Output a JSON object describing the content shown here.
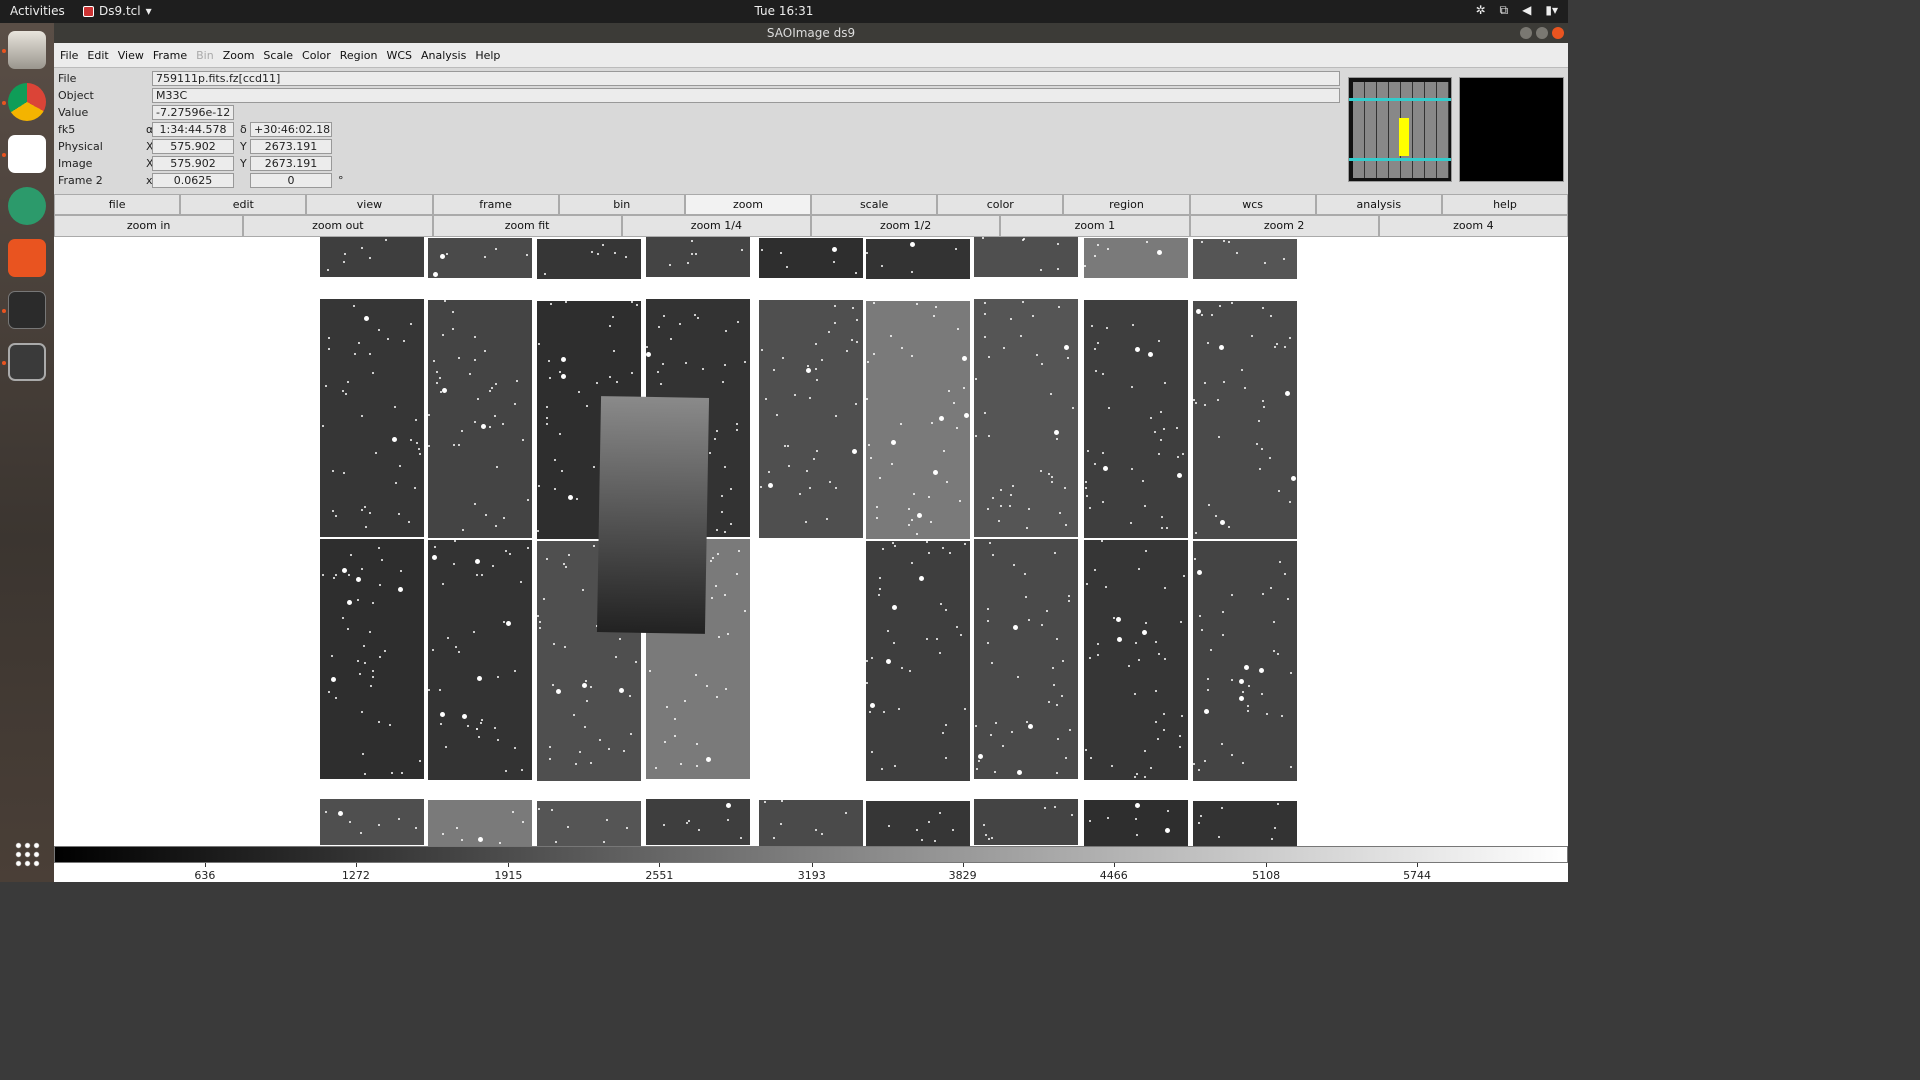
{
  "topbar": {
    "activities": "Activities",
    "app_name": "Ds9.tcl",
    "clock": "Tue 16:31"
  },
  "dock": {
    "apps": [
      "files",
      "chrome",
      "slack",
      "atom",
      "app-store",
      "terminal",
      "ds9"
    ]
  },
  "window": {
    "title": "SAOImage ds9"
  },
  "menubar": {
    "items": [
      "File",
      "Edit",
      "View",
      "Frame",
      "Bin",
      "Zoom",
      "Scale",
      "Color",
      "Region",
      "WCS",
      "Analysis",
      "Help"
    ],
    "disabled": [
      "Bin"
    ]
  },
  "info": {
    "file_label": "File",
    "file_value": "759111p.fits.fz[ccd11]",
    "object_label": "Object",
    "object_value": "M33C",
    "value_label": "Value",
    "value_value": "-7.27596e-12",
    "wcs_label": "fk5",
    "alpha_symbol": "α",
    "alpha_value": "1:34:44.578",
    "delta_symbol": "δ",
    "delta_value": "+30:46:02.183",
    "physical_label": "Physical",
    "physical_x_label": "X",
    "physical_x": "575.902",
    "physical_y_label": "Y",
    "physical_y": "2673.191",
    "image_label": "Image",
    "image_x_label": "X",
    "image_x": "575.902",
    "image_y_label": "Y",
    "image_y": "2673.191",
    "frame_label": "Frame 2",
    "frame_x_label": "x",
    "frame_zoom": "0.0625",
    "frame_angle": "0",
    "degree": "°"
  },
  "buttonbar": [
    "file",
    "edit",
    "view",
    "frame",
    "bin",
    "zoom",
    "scale",
    "color",
    "region",
    "wcs",
    "analysis",
    "help"
  ],
  "buttonbar_active": "zoom",
  "zoombar": [
    "zoom in",
    "zoom out",
    "zoom fit",
    "zoom 1/4",
    "zoom 1/2",
    "zoom 1",
    "zoom 2",
    "zoom 4"
  ],
  "colorbar": {
    "ticks": [
      "636",
      "1272",
      "1915",
      "2551",
      "3193",
      "3829",
      "4466",
      "5108",
      "5744"
    ],
    "min": 0,
    "max": 6380
  }
}
